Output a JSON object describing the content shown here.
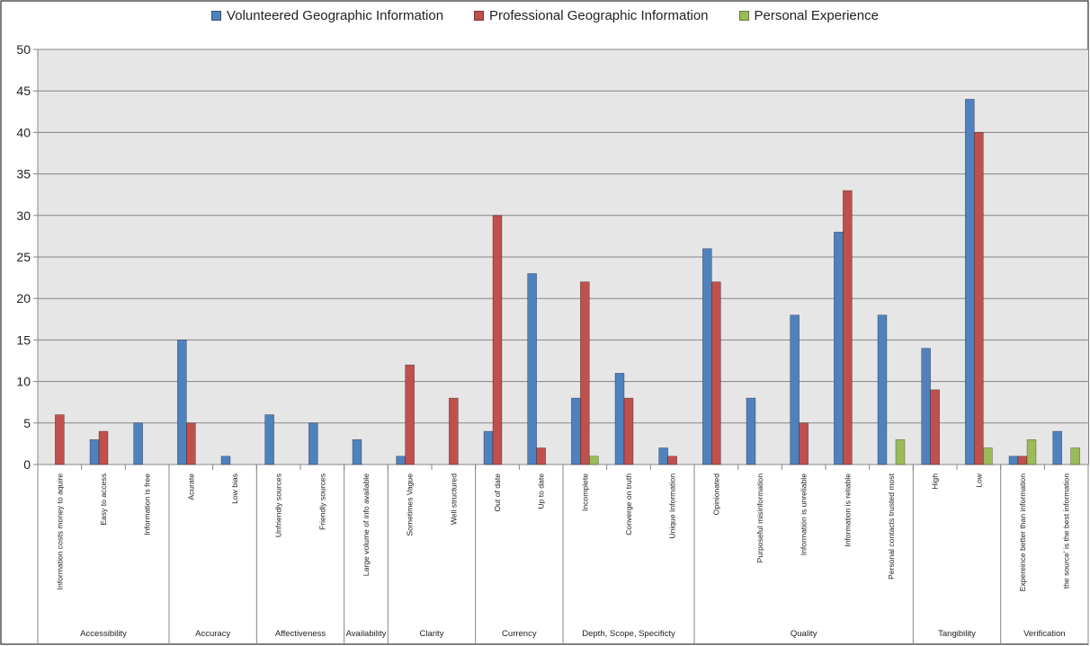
{
  "chart_data": {
    "type": "bar",
    "title": "",
    "xlabel": "",
    "ylabel": "",
    "ylim": [
      0,
      50
    ],
    "yticks": [
      0,
      5,
      10,
      15,
      20,
      25,
      30,
      35,
      40,
      45,
      50
    ],
    "grid": true,
    "legend_position": "top",
    "groups": [
      {
        "name": "Accessibility",
        "categories": [
          "Information costs money to aquire",
          "Easy to access",
          "Information is free"
        ]
      },
      {
        "name": "Accuracy",
        "categories": [
          "Acurate",
          "Low bias"
        ]
      },
      {
        "name": "Affectiveness",
        "categories": [
          "Unfriendly sources",
          "Friendly sources"
        ]
      },
      {
        "name": "Availability",
        "categories": [
          "Large volume of info available"
        ]
      },
      {
        "name": "Clarity",
        "categories": [
          "Sometimes Vague",
          "Well structured"
        ]
      },
      {
        "name": "Currency",
        "categories": [
          "Out of date",
          "Up to date"
        ]
      },
      {
        "name": "Depth, Scope, Specificty",
        "categories": [
          "Incomplete",
          "Converge on truth",
          "Unique Information"
        ]
      },
      {
        "name": "Quality",
        "categories": [
          "Opinionated",
          "Purposeful misinformation",
          "Information is unreliable",
          "Information is reliable",
          "Personal contacts trusted most"
        ]
      },
      {
        "name": "Tangibility",
        "categories": [
          "High",
          "Low"
        ]
      },
      {
        "name": "Verification",
        "categories": [
          "Expereince better than information",
          "the source' is the best information"
        ]
      }
    ],
    "categories": [
      "Information costs money to aquire",
      "Easy to access",
      "Information is free",
      "Acurate",
      "Low bias",
      "Unfriendly sources",
      "Friendly sources",
      "Large volume of info available",
      "Sometimes Vague",
      "Well structured",
      "Out of date",
      "Up to date",
      "Incomplete",
      "Converge on truth",
      "Unique Information",
      "Opinionated",
      "Purposeful misinformation",
      "Information is unreliable",
      "Information is reliable",
      "Personal contacts trusted most",
      "High",
      "Low",
      "Expereince better than information",
      "the source' is the best information"
    ],
    "series": [
      {
        "name": "Volunteered Geographic Information",
        "color": "#4f81bd",
        "values": [
          0,
          3,
          5,
          15,
          1,
          6,
          5,
          3,
          1,
          0,
          4,
          23,
          8,
          11,
          2,
          26,
          8,
          18,
          28,
          18,
          14,
          44,
          1,
          4
        ]
      },
      {
        "name": "Professional Geographic Information",
        "color": "#c0504d",
        "values": [
          6,
          4,
          0,
          5,
          0,
          0,
          0,
          0,
          12,
          8,
          30,
          2,
          22,
          8,
          1,
          22,
          0,
          5,
          33,
          0,
          9,
          40,
          1,
          0
        ]
      },
      {
        "name": "Personal Experience",
        "color": "#9bbb59",
        "values": [
          0,
          0,
          0,
          0,
          0,
          0,
          0,
          0,
          0,
          0,
          0,
          0,
          1,
          0,
          0,
          0,
          0,
          0,
          0,
          3,
          0,
          2,
          3,
          2
        ]
      }
    ]
  }
}
